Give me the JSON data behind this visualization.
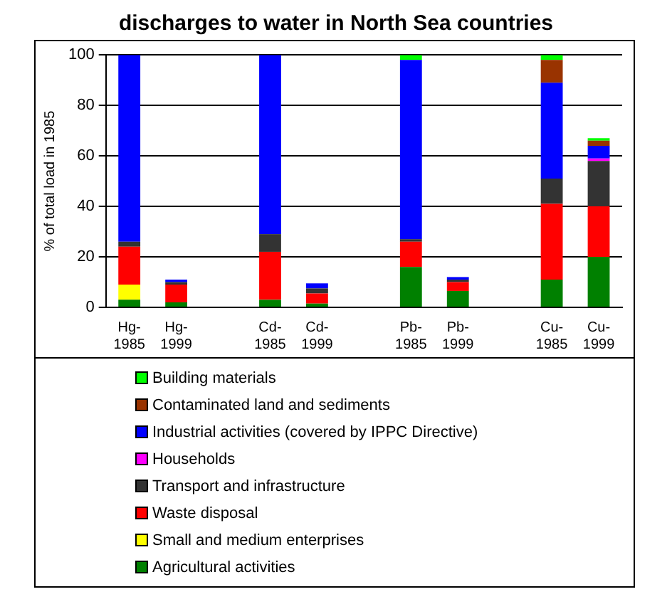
{
  "chart_data": {
    "type": "bar",
    "title": "discharges to water in North Sea countries",
    "ylabel": "% of total load in 1985",
    "categories": [
      "Hg-1985",
      "Hg-1999",
      null,
      "Cd-1985",
      "Cd-1999",
      null,
      "Pb-1985",
      "Pb-1999",
      null,
      "Cu-1985",
      "Cu-1999"
    ],
    "stacked": true,
    "ylim": [
      0,
      100
    ],
    "yticks": [
      0,
      20,
      40,
      60,
      80,
      100
    ],
    "grid": "y",
    "legend": "bottom",
    "series": [
      {
        "name": "Agricultural activities",
        "color": "#008000",
        "values": [
          3,
          2,
          null,
          3,
          1.5,
          null,
          16,
          6.5,
          null,
          11,
          20
        ]
      },
      {
        "name": "Small and medium enterprises",
        "color": "#ffff00",
        "values": [
          6,
          0,
          null,
          0,
          0,
          null,
          0,
          0,
          null,
          0,
          0
        ]
      },
      {
        "name": "Waste disposal",
        "color": "#ff0000",
        "values": [
          15,
          7,
          null,
          19,
          4,
          null,
          10,
          3.5,
          null,
          30,
          20
        ]
      },
      {
        "name": "Transport and infrastructure",
        "color": "#333333",
        "values": [
          2,
          1,
          null,
          7,
          2,
          null,
          1,
          1,
          null,
          10,
          18
        ]
      },
      {
        "name": "Households",
        "color": "#ff00ff",
        "values": [
          0,
          0,
          null,
          0,
          0,
          null,
          0,
          0,
          null,
          0,
          1
        ]
      },
      {
        "name": "Industrial activities (covered by IPPC Directive)",
        "color": "#0000ff",
        "values": [
          74,
          1,
          null,
          71,
          2,
          null,
          71,
          1,
          null,
          38,
          5
        ]
      },
      {
        "name": "Contaminated land and sediments",
        "color": "#993300",
        "values": [
          0,
          0,
          null,
          0,
          0,
          null,
          0,
          0,
          null,
          9,
          2
        ]
      },
      {
        "name": "Building materials",
        "color": "#00ff00",
        "values": [
          0,
          0,
          null,
          0,
          0,
          null,
          2,
          0,
          null,
          2,
          1
        ]
      }
    ]
  }
}
